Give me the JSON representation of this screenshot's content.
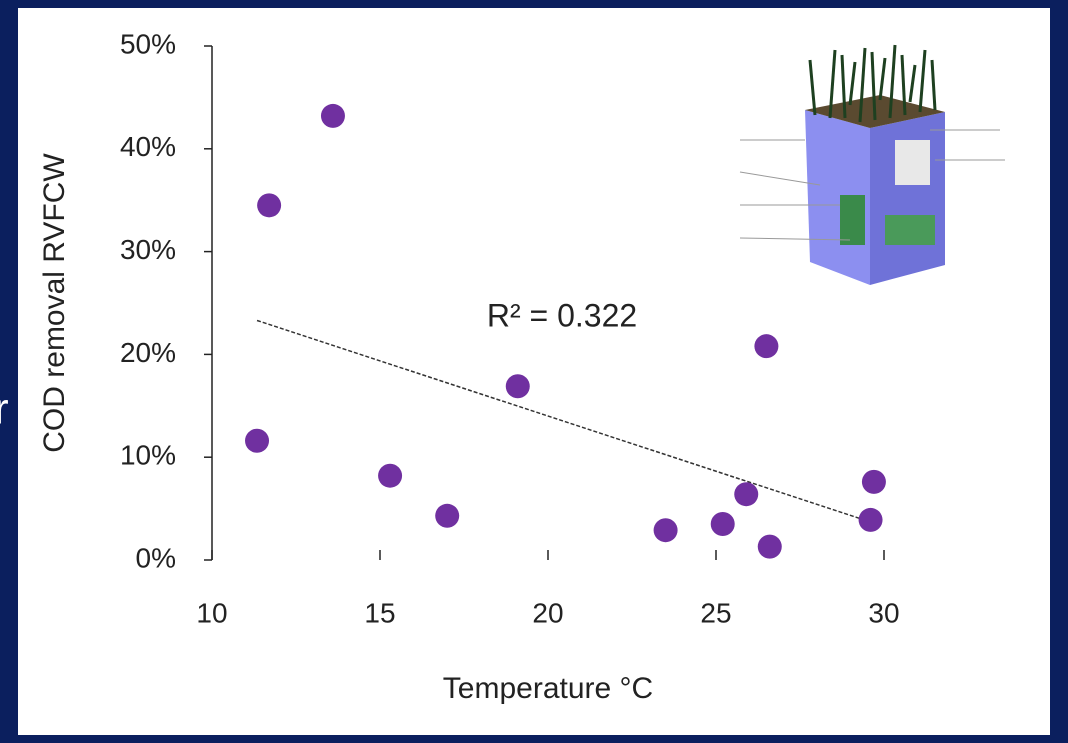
{
  "slide_text": "r",
  "chart_data": {
    "type": "scatter",
    "annotation": "R² = 0.322",
    "x_label": "Temperature °C",
    "y_label": "COD removal RVFCW",
    "x": [
      11.34,
      11.7,
      13.6,
      15.3,
      17.0,
      19.1,
      23.5,
      25.2,
      25.9,
      26.5,
      26.6,
      29.6,
      29.7
    ],
    "values": [
      11.6,
      34.5,
      43.2,
      8.2,
      4.3,
      16.9,
      2.9,
      3.5,
      6.4,
      20.8,
      1.3,
      3.9,
      7.6
    ],
    "color": "#7030a0",
    "trendline": {
      "x": [
        11.34,
        29.6
      ],
      "y": [
        23.3,
        3.7
      ],
      "color": "#333333"
    },
    "xlim": [
      10,
      30
    ],
    "xticks": [
      10,
      15,
      20,
      25,
      30
    ],
    "ylim": [
      0,
      50
    ],
    "yticks": [
      {
        "value": 0,
        "label": "0%"
      },
      {
        "value": 10,
        "label": "10%"
      },
      {
        "value": 20,
        "label": "20%"
      },
      {
        "value": 30,
        "label": "30%"
      },
      {
        "value": 40,
        "label": "40%"
      },
      {
        "value": 50,
        "label": "50%"
      }
    ],
    "grid": false
  }
}
